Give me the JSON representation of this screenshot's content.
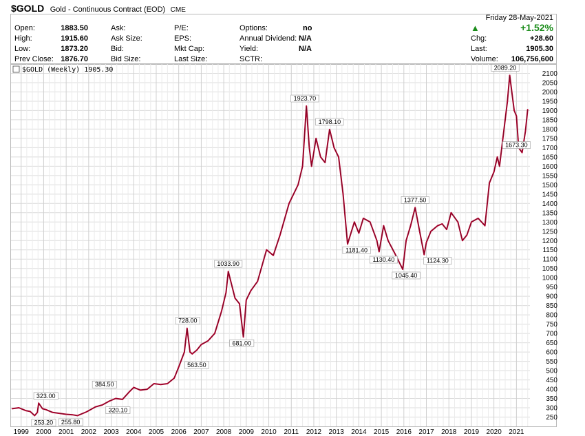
{
  "header": {
    "symbol": "$GOLD",
    "description": "Gold - Continuous Contract (EOD)",
    "exchange": "CME"
  },
  "quote": {
    "open_label": "Open:",
    "open": "1883.50",
    "high_label": "High:",
    "high": "1915.60",
    "low_label": "Low:",
    "low": "1873.20",
    "prev_label": "Prev Close:",
    "prev": "1876.70",
    "ask_label": "Ask:",
    "ask_size_label": "Ask Size:",
    "bid_label": "Bid:",
    "bid_size_label": "Bid Size:",
    "pe_label": "P/E:",
    "eps_label": "EPS:",
    "mktcap_label": "Mkt Cap:",
    "lastsize_label": "Last Size:",
    "options_label": "Options:",
    "options": "no",
    "div_label": "Annual Dividend:",
    "div": "N/A",
    "yield_label": "Yield:",
    "yield": "N/A",
    "sctr_label": "SCTR:",
    "date": "Friday  28-May-2021",
    "pct": "+1.52%",
    "chg_label": "Chg:",
    "chg": "+28.60",
    "last_label": "Last:",
    "last": "1905.30",
    "vol_label": "Volume:",
    "vol": "106,756,600",
    "up_color": "#1a8c1a"
  },
  "chart_data": {
    "type": "line",
    "legend": "$GOLD (Weekly) 1905.30",
    "price_color": "#b5002e",
    "ylim": [
      200,
      2150
    ],
    "y_ticks": [
      250,
      300,
      350,
      400,
      450,
      500,
      550,
      600,
      650,
      700,
      750,
      800,
      850,
      900,
      950,
      1000,
      1050,
      1100,
      1150,
      1200,
      1250,
      1300,
      1350,
      1400,
      1450,
      1500,
      1550,
      1600,
      1650,
      1700,
      1750,
      1800,
      1850,
      1900,
      1950,
      2000,
      2050,
      2100
    ],
    "x_range": [
      1998.55,
      2021.6
    ],
    "x_ticks": [
      "1999",
      "2000",
      "2001",
      "2002",
      "2003",
      "2004",
      "2005",
      "2006",
      "2007",
      "2008",
      "2009",
      "2010",
      "2011",
      "2012",
      "2013",
      "2014",
      "2015",
      "2016",
      "2017",
      "2018",
      "2019",
      "2020",
      "2021"
    ],
    "series": [
      {
        "x": [
          1998.6,
          1998.9,
          1999.2,
          1999.4,
          1999.6,
          1999.72,
          1999.78,
          1999.95,
          2000.1,
          2000.4,
          2000.7,
          2001.0,
          2001.3,
          2001.5,
          2001.9,
          2002.3,
          2002.6,
          2002.9,
          2003.2,
          2003.5,
          2003.8,
          2004.0,
          2004.3,
          2004.6,
          2004.9,
          2005.2,
          2005.5,
          2005.8,
          2006.0,
          2006.25,
          2006.37,
          2006.5,
          2006.6,
          2006.8,
          2007.0,
          2007.3,
          2007.6,
          2007.9,
          2008.1,
          2008.2,
          2008.5,
          2008.7,
          2008.87,
          2009.0,
          2009.2,
          2009.5,
          2009.9,
          2010.2,
          2010.5,
          2010.9,
          2011.3,
          2011.5,
          2011.67,
          2011.8,
          2011.9,
          2012.1,
          2012.3,
          2012.5,
          2012.7,
          2012.9,
          2013.1,
          2013.3,
          2013.5,
          2013.8,
          2014.0,
          2014.2,
          2014.5,
          2014.8,
          2014.9,
          2015.1,
          2015.3,
          2015.6,
          2015.95,
          2016.1,
          2016.3,
          2016.5,
          2016.7,
          2016.9,
          2017.0,
          2017.2,
          2017.5,
          2017.7,
          2017.9,
          2018.1,
          2018.4,
          2018.6,
          2018.8,
          2019.0,
          2019.3,
          2019.6,
          2019.8,
          2020.0,
          2020.15,
          2020.25,
          2020.4,
          2020.6,
          2020.7,
          2020.9,
          2021.0,
          2021.1,
          2021.25,
          2021.4,
          2021.5
        ],
        "y": [
          295,
          300,
          285,
          280,
          258,
          275,
          325,
          295,
          290,
          275,
          270,
          265,
          262,
          258,
          278,
          305,
          315,
          335,
          350,
          345,
          385,
          410,
          395,
          400,
          430,
          425,
          430,
          460,
          520,
          600,
          728,
          600,
          590,
          610,
          640,
          660,
          700,
          820,
          920,
          1033.9,
          890,
          860,
          681,
          880,
          930,
          980,
          1150,
          1120,
          1230,
          1400,
          1500,
          1600,
          1923.7,
          1700,
          1600,
          1750,
          1650,
          1620,
          1798.1,
          1700,
          1650,
          1450,
          1181.4,
          1300,
          1240,
          1320,
          1300,
          1200,
          1140,
          1280,
          1200,
          1130.4,
          1045.4,
          1200,
          1280,
          1377.5,
          1250,
          1124.3,
          1190,
          1250,
          1280,
          1290,
          1260,
          1350,
          1300,
          1200,
          1230,
          1300,
          1320,
          1280,
          1510,
          1570,
          1650,
          1600,
          1750,
          1950,
          2089.2,
          1900,
          1870,
          1700,
          1673.3,
          1790,
          1905.3
        ]
      }
    ],
    "annotations": [
      {
        "text": "253.20",
        "x": 2000.0,
        "y": 253.2
      },
      {
        "text": "323.00",
        "x": 2000.1,
        "y": 323.0
      },
      {
        "text": "255.80",
        "x": 2001.2,
        "y": 255.8
      },
      {
        "text": "384.50",
        "x": 2002.7,
        "y": 384.5
      },
      {
        "text": "320.10",
        "x": 2003.3,
        "y": 320.1
      },
      {
        "text": "728.00",
        "x": 2006.4,
        "y": 728.0
      },
      {
        "text": "563.50",
        "x": 2006.8,
        "y": 563.5
      },
      {
        "text": "1033.90",
        "x": 2008.2,
        "y": 1033.9
      },
      {
        "text": "681.00",
        "x": 2008.8,
        "y": 681.0
      },
      {
        "text": "1923.70",
        "x": 2011.6,
        "y": 1923.7
      },
      {
        "text": "1798.10",
        "x": 2012.7,
        "y": 1798.1
      },
      {
        "text": "1181.40",
        "x": 2013.9,
        "y": 1181.4
      },
      {
        "text": "1130.40",
        "x": 2015.1,
        "y": 1130.4
      },
      {
        "text": "1045.40",
        "x": 2016.1,
        "y": 1045.4
      },
      {
        "text": "1377.50",
        "x": 2016.5,
        "y": 1377.5
      },
      {
        "text": "1124.30",
        "x": 2017.5,
        "y": 1124.3
      },
      {
        "text": "2089.20",
        "x": 2020.5,
        "y": 2089.2
      },
      {
        "text": "1673.30",
        "x": 2021.0,
        "y": 1673.3
      }
    ]
  }
}
